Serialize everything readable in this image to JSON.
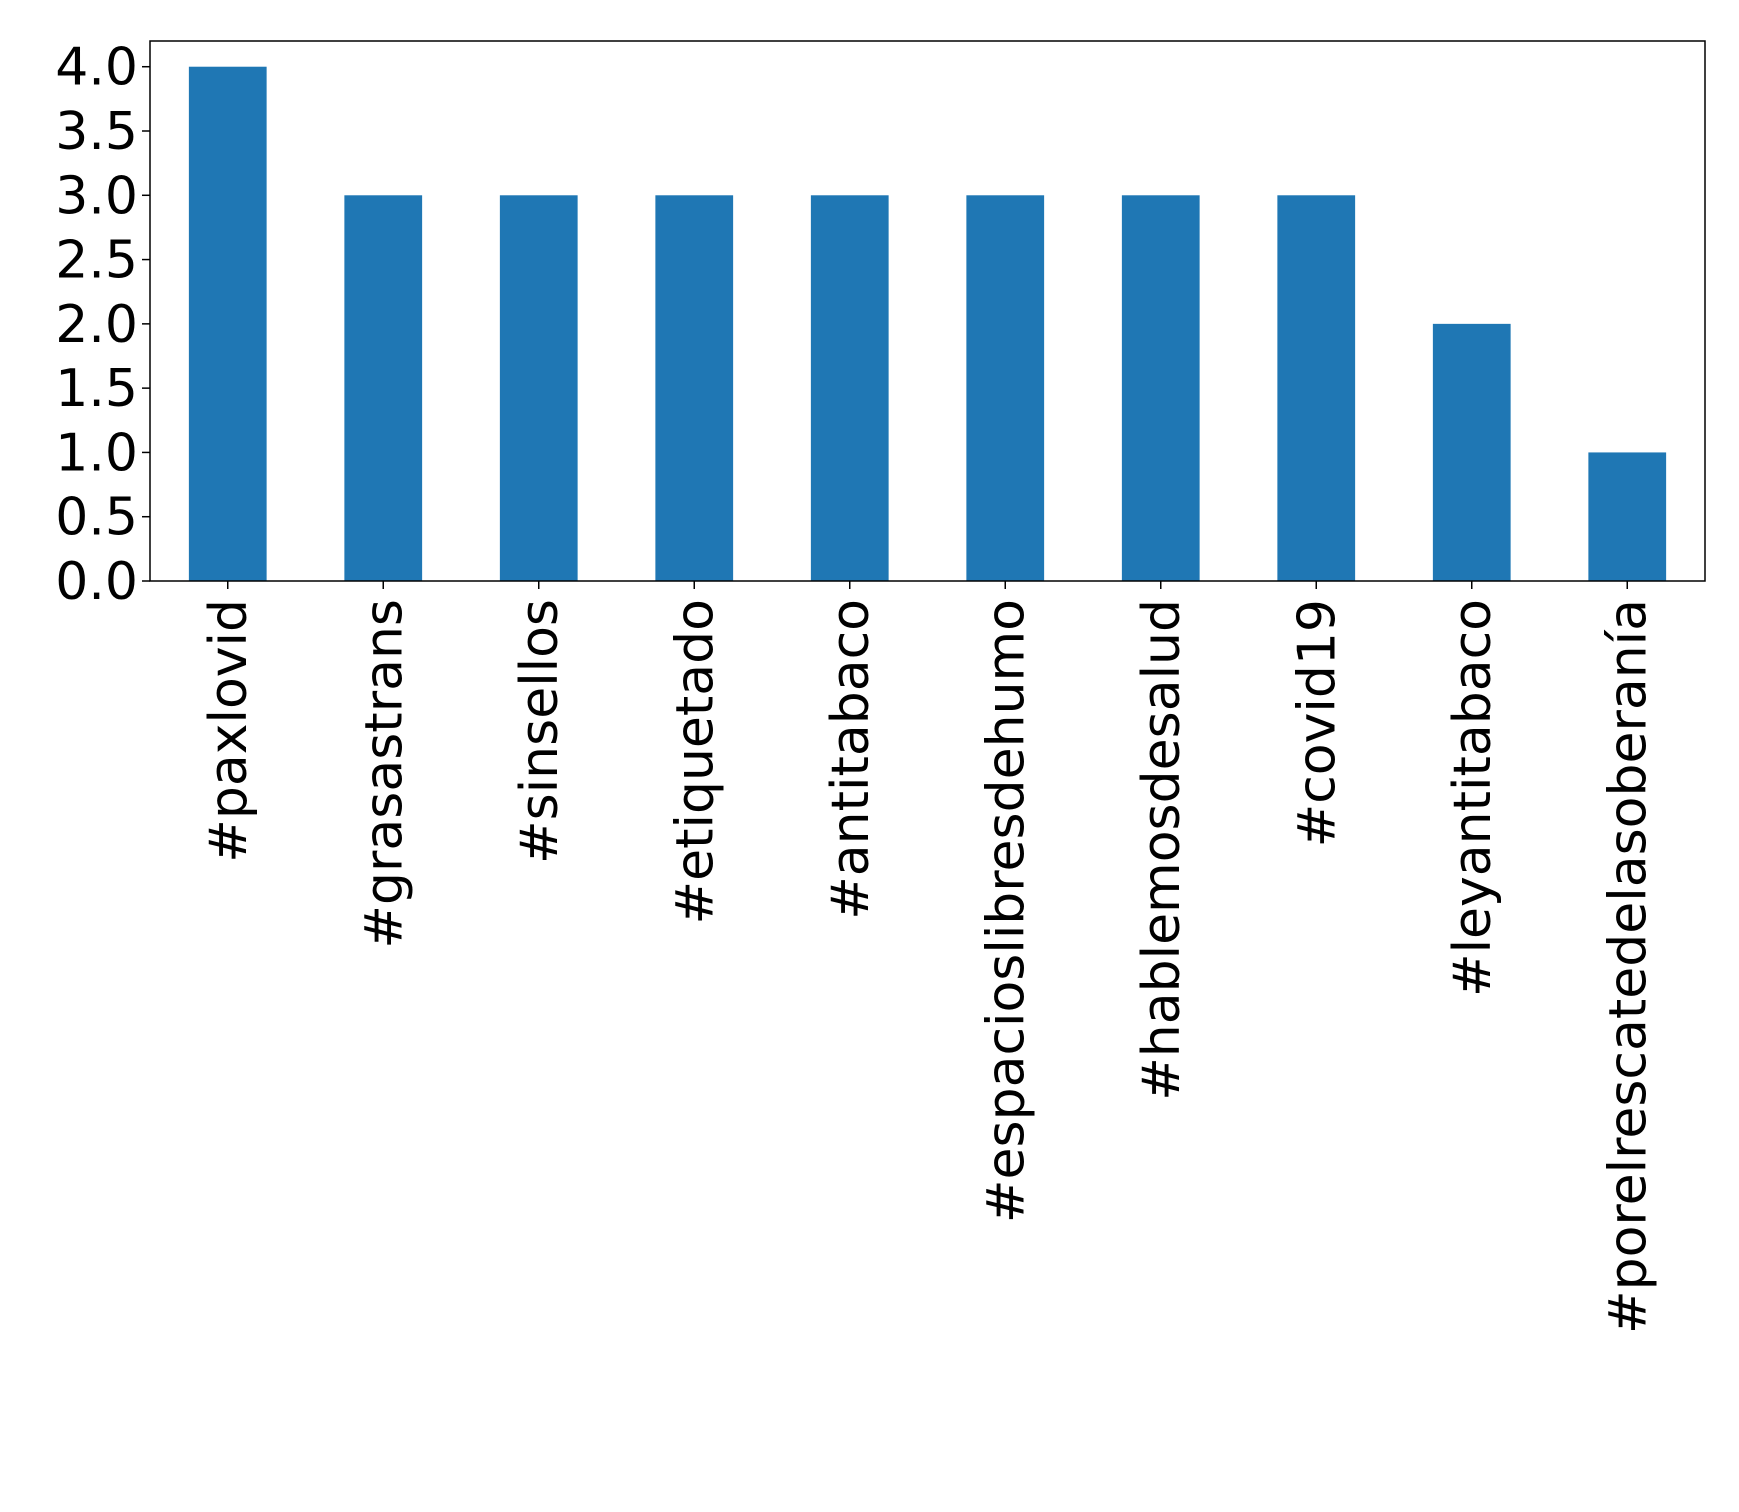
{
  "chart_data": {
    "type": "bar",
    "title": "",
    "xlabel": "",
    "ylabel": "",
    "categories": [
      "#paxlovid",
      "#grasastrans",
      "#sinsellos",
      "#etiquetado",
      "#antitabaco",
      "#espacioslibresdehumo",
      "#hablemosdesalud",
      "#covid19",
      "#leyantitabaco",
      "#porelrescatedelasoberanía"
    ],
    "values": [
      4,
      3,
      3,
      3,
      3,
      3,
      3,
      3,
      2,
      1
    ],
    "ylim": [
      0,
      4.2
    ],
    "yticks": [
      0.0,
      0.5,
      1.0,
      1.5,
      2.0,
      2.5,
      3.0,
      3.5,
      4.0
    ],
    "ytick_labels": [
      "0.0",
      "0.5",
      "1.0",
      "1.5",
      "2.0",
      "2.5",
      "3.0",
      "3.5",
      "4.0"
    ],
    "bar_color": "#1f77b4",
    "grid": false,
    "legend": false
  }
}
